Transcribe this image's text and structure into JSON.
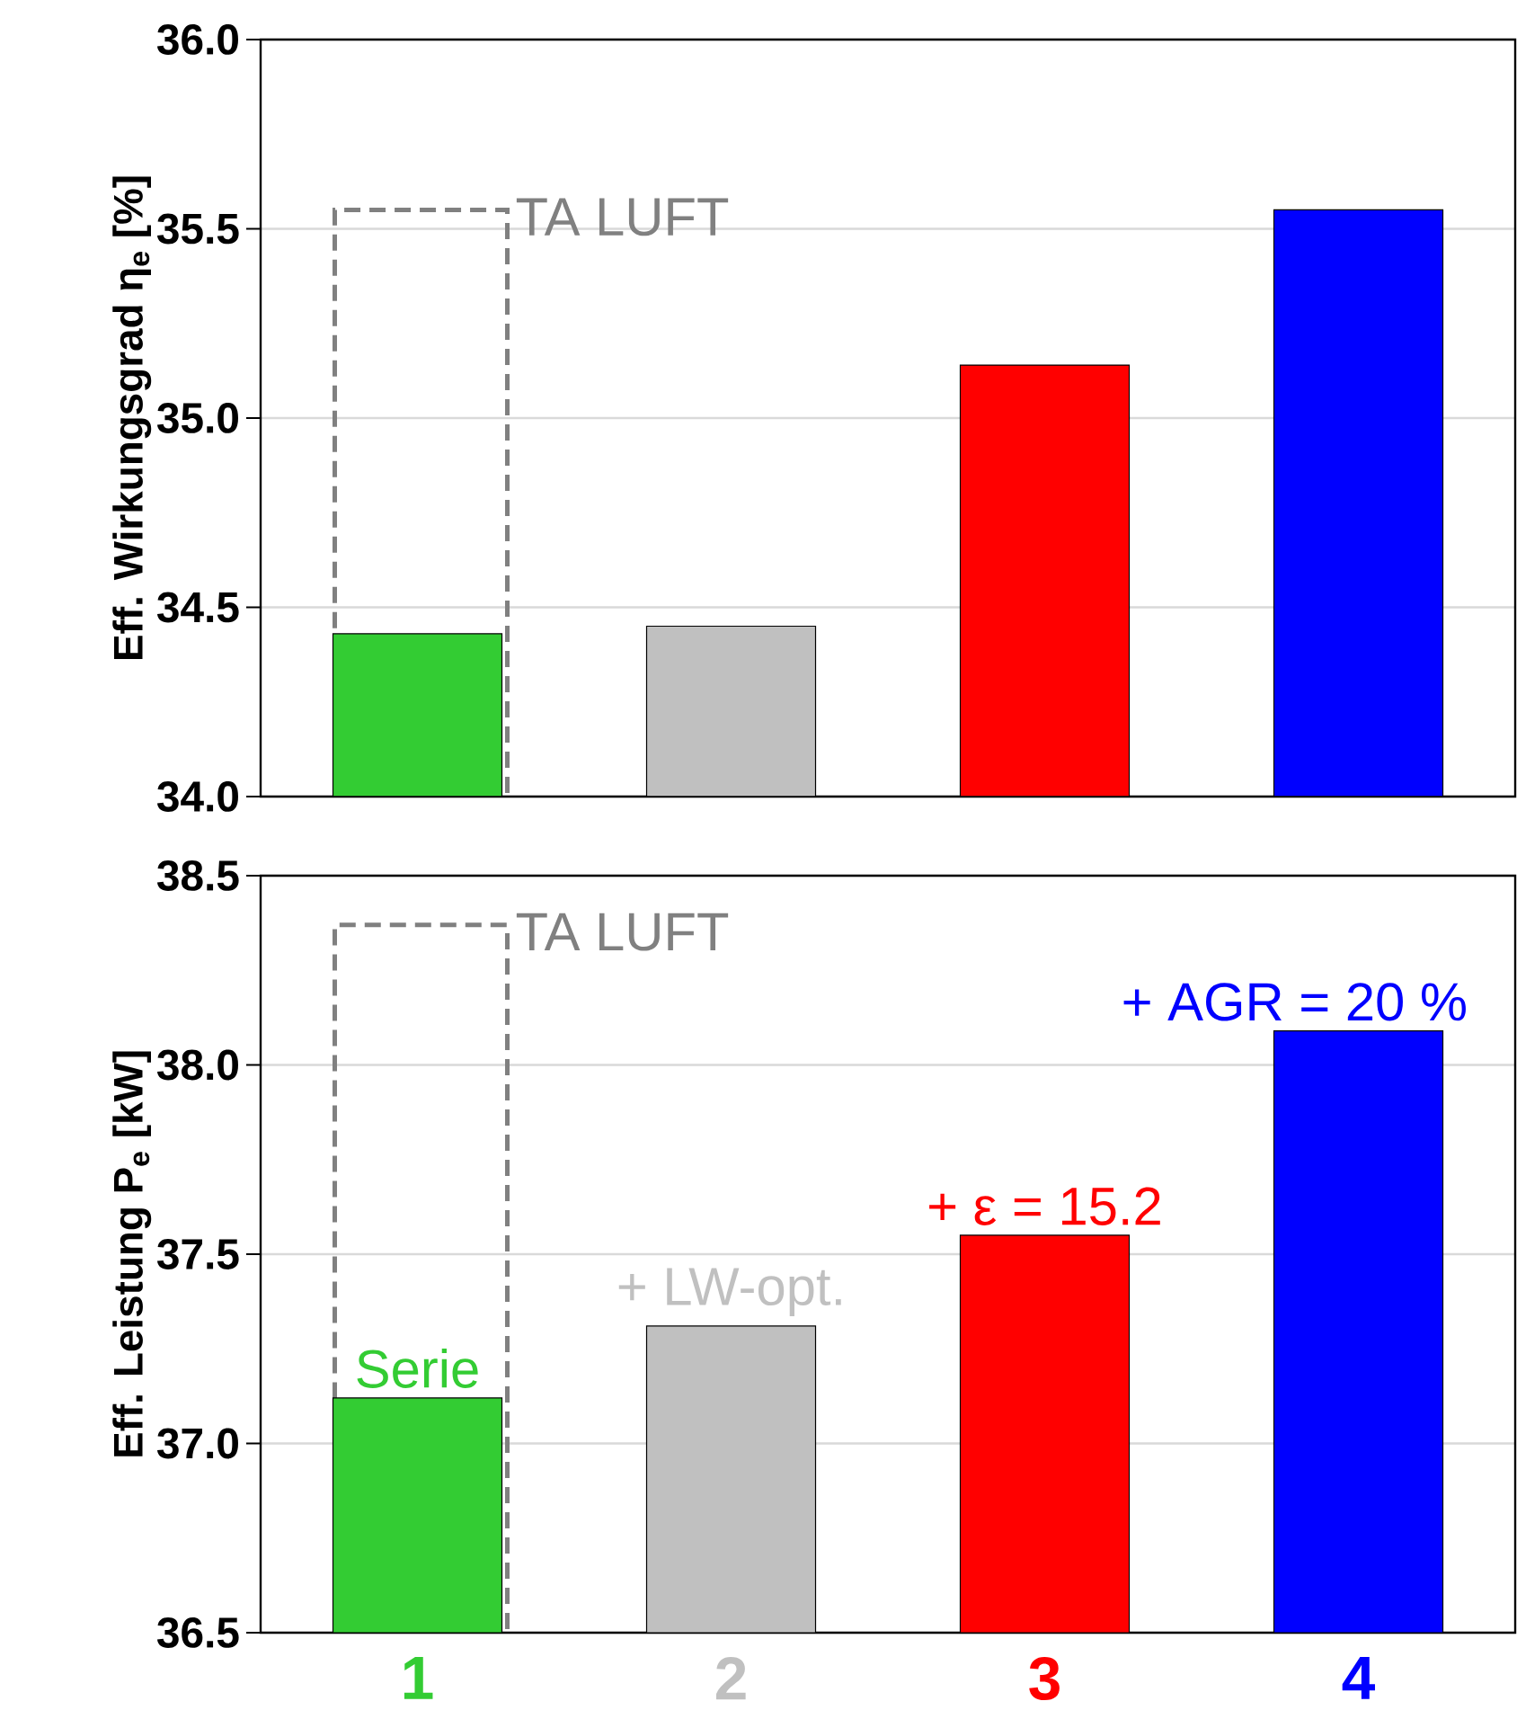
{
  "chart_data": [
    {
      "type": "bar",
      "ylabel": "Eff. Wirkungsgrad η$_{e}$ [%]",
      "categories": [
        "1",
        "2",
        "3",
        "4"
      ],
      "series": [
        {
          "name": "TA LUFT",
          "color": "#808080",
          "line_style": "dashed",
          "values": [
            35.55,
            null,
            null,
            null
          ]
        },
        {
          "colors": [
            "#33cc33",
            "#c0c0c0",
            "#ff0000",
            "#0000ff"
          ],
          "values": [
            34.43,
            34.45,
            35.14,
            35.55
          ]
        }
      ],
      "ylim": [
        34,
        36
      ],
      "yticks": [
        {
          "value": 34,
          "label": "34.0"
        },
        {
          "value": 34.5,
          "label": "34.5"
        },
        {
          "value": 35,
          "label": "35.0"
        },
        {
          "value": 35.5,
          "label": "35.5"
        },
        {
          "value": 36,
          "label": "36.0"
        }
      ],
      "grid": "y",
      "tick_labels": "y"
    },
    {
      "type": "bar",
      "ylabel": "Eff. Leistung P$_{e}$ [kW]",
      "categories": [
        "1",
        "2",
        "3",
        "4"
      ],
      "series": [
        {
          "name": "TA LUFT",
          "color": "#808080",
          "line_style": "dashed",
          "values": [
            38.37,
            null,
            null,
            null
          ]
        },
        {
          "colors": [
            "#33cc33",
            "#c0c0c0",
            "#ff0000",
            "#0000ff"
          ],
          "values": [
            37.12,
            37.31,
            37.55,
            38.09
          ]
        }
      ],
      "ylim": [
        36.5,
        38.5
      ],
      "yticks": [
        {
          "value": 36.5,
          "label": "36.5"
        },
        {
          "value": 37,
          "label": "37.0"
        },
        {
          "value": 37.5,
          "label": "37.5"
        },
        {
          "value": 38,
          "label": "38.0"
        },
        {
          "value": 38.5,
          "label": "38.5"
        }
      ],
      "grid": "y",
      "annotations": [
        {
          "text": "Serie",
          "x": "1",
          "y": 37.12
        },
        {
          "text": "+ LW-opt.",
          "x": "2",
          "y": 37.31
        },
        {
          "text": "+ ε = 15.2",
          "x": "3",
          "y": 37.55
        },
        {
          "text": "+ AGR = 20 %",
          "x": "4",
          "y": 38.09
        }
      ]
    }
  ]
}
